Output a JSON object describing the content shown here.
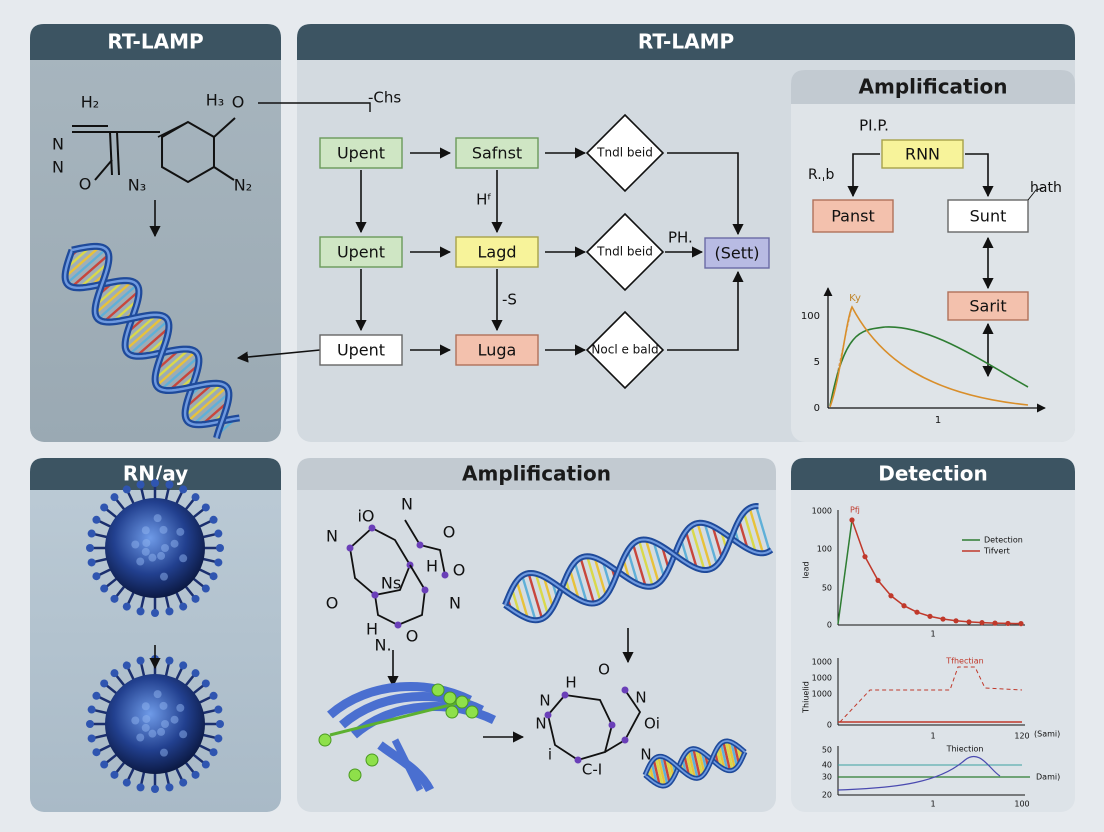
{
  "panels": [
    {
      "title": "RT-LAMP"
    },
    {
      "title": "RT-LAMP"
    },
    {
      "title": "Amplification"
    },
    {
      "title": "RN/ay"
    },
    {
      "title": "Amplification"
    },
    {
      "title": "Detection"
    }
  ],
  "molecule_a": {
    "labels": [
      "H₂",
      "H₃",
      "O",
      "N",
      "N",
      "O",
      "N₃",
      "N₂"
    ]
  },
  "flowchart": {
    "nodes": [
      {
        "label": "Upent"
      },
      {
        "label": "Safnst"
      },
      {
        "label": "Tndl beid"
      },
      {
        "label": "Upent"
      },
      {
        "label": "Lagd"
      },
      {
        "label": "Tndl beid"
      },
      {
        "label": "(Sett)"
      },
      {
        "label": "Upent"
      },
      {
        "label": "Luga"
      },
      {
        "label": "Nocl e bald"
      }
    ],
    "annotations": [
      "-Chs",
      "Hᶠ",
      "-S",
      "PH."
    ]
  },
  "amplification": {
    "nodes": [
      "RNN",
      "Panst",
      "Sunt",
      "Sarit"
    ],
    "annotations": [
      "PI.P.",
      "R.ˌb",
      "hath"
    ],
    "chart": {
      "yticks": [
        "100",
        "5",
        "0"
      ],
      "xticks": [
        "1"
      ],
      "label": "Ky"
    }
  },
  "molecule_e": {
    "labels": [
      "iO",
      "N",
      "N",
      "O",
      "Ns",
      "H",
      "O",
      "O",
      "N",
      "O",
      "H",
      "N.",
      "H",
      "O",
      "N",
      "N",
      "Oi",
      "N",
      "N",
      "i",
      "C-I"
    ]
  },
  "detection": {
    "charts": [
      {
        "yticks": [
          "1000",
          "100",
          "50",
          "0"
        ],
        "xticks": [
          "1"
        ],
        "ylabel": "lead",
        "annotation": "Pfj",
        "legend": [
          "Detection",
          "Tifvert"
        ]
      },
      {
        "yticks": [
          "1000",
          "1000",
          "1000",
          "0"
        ],
        "xticks": [
          "1",
          "120"
        ],
        "ylabel": "Thiuelid",
        "annotation": "Tfhectian",
        "xlabel": "(Sami)"
      },
      {
        "yticks": [
          "50",
          "40",
          "30",
          "20"
        ],
        "xticks": [
          "1",
          "100"
        ],
        "annotation": "Thiection",
        "xlabel": "Dami)"
      }
    ]
  }
}
